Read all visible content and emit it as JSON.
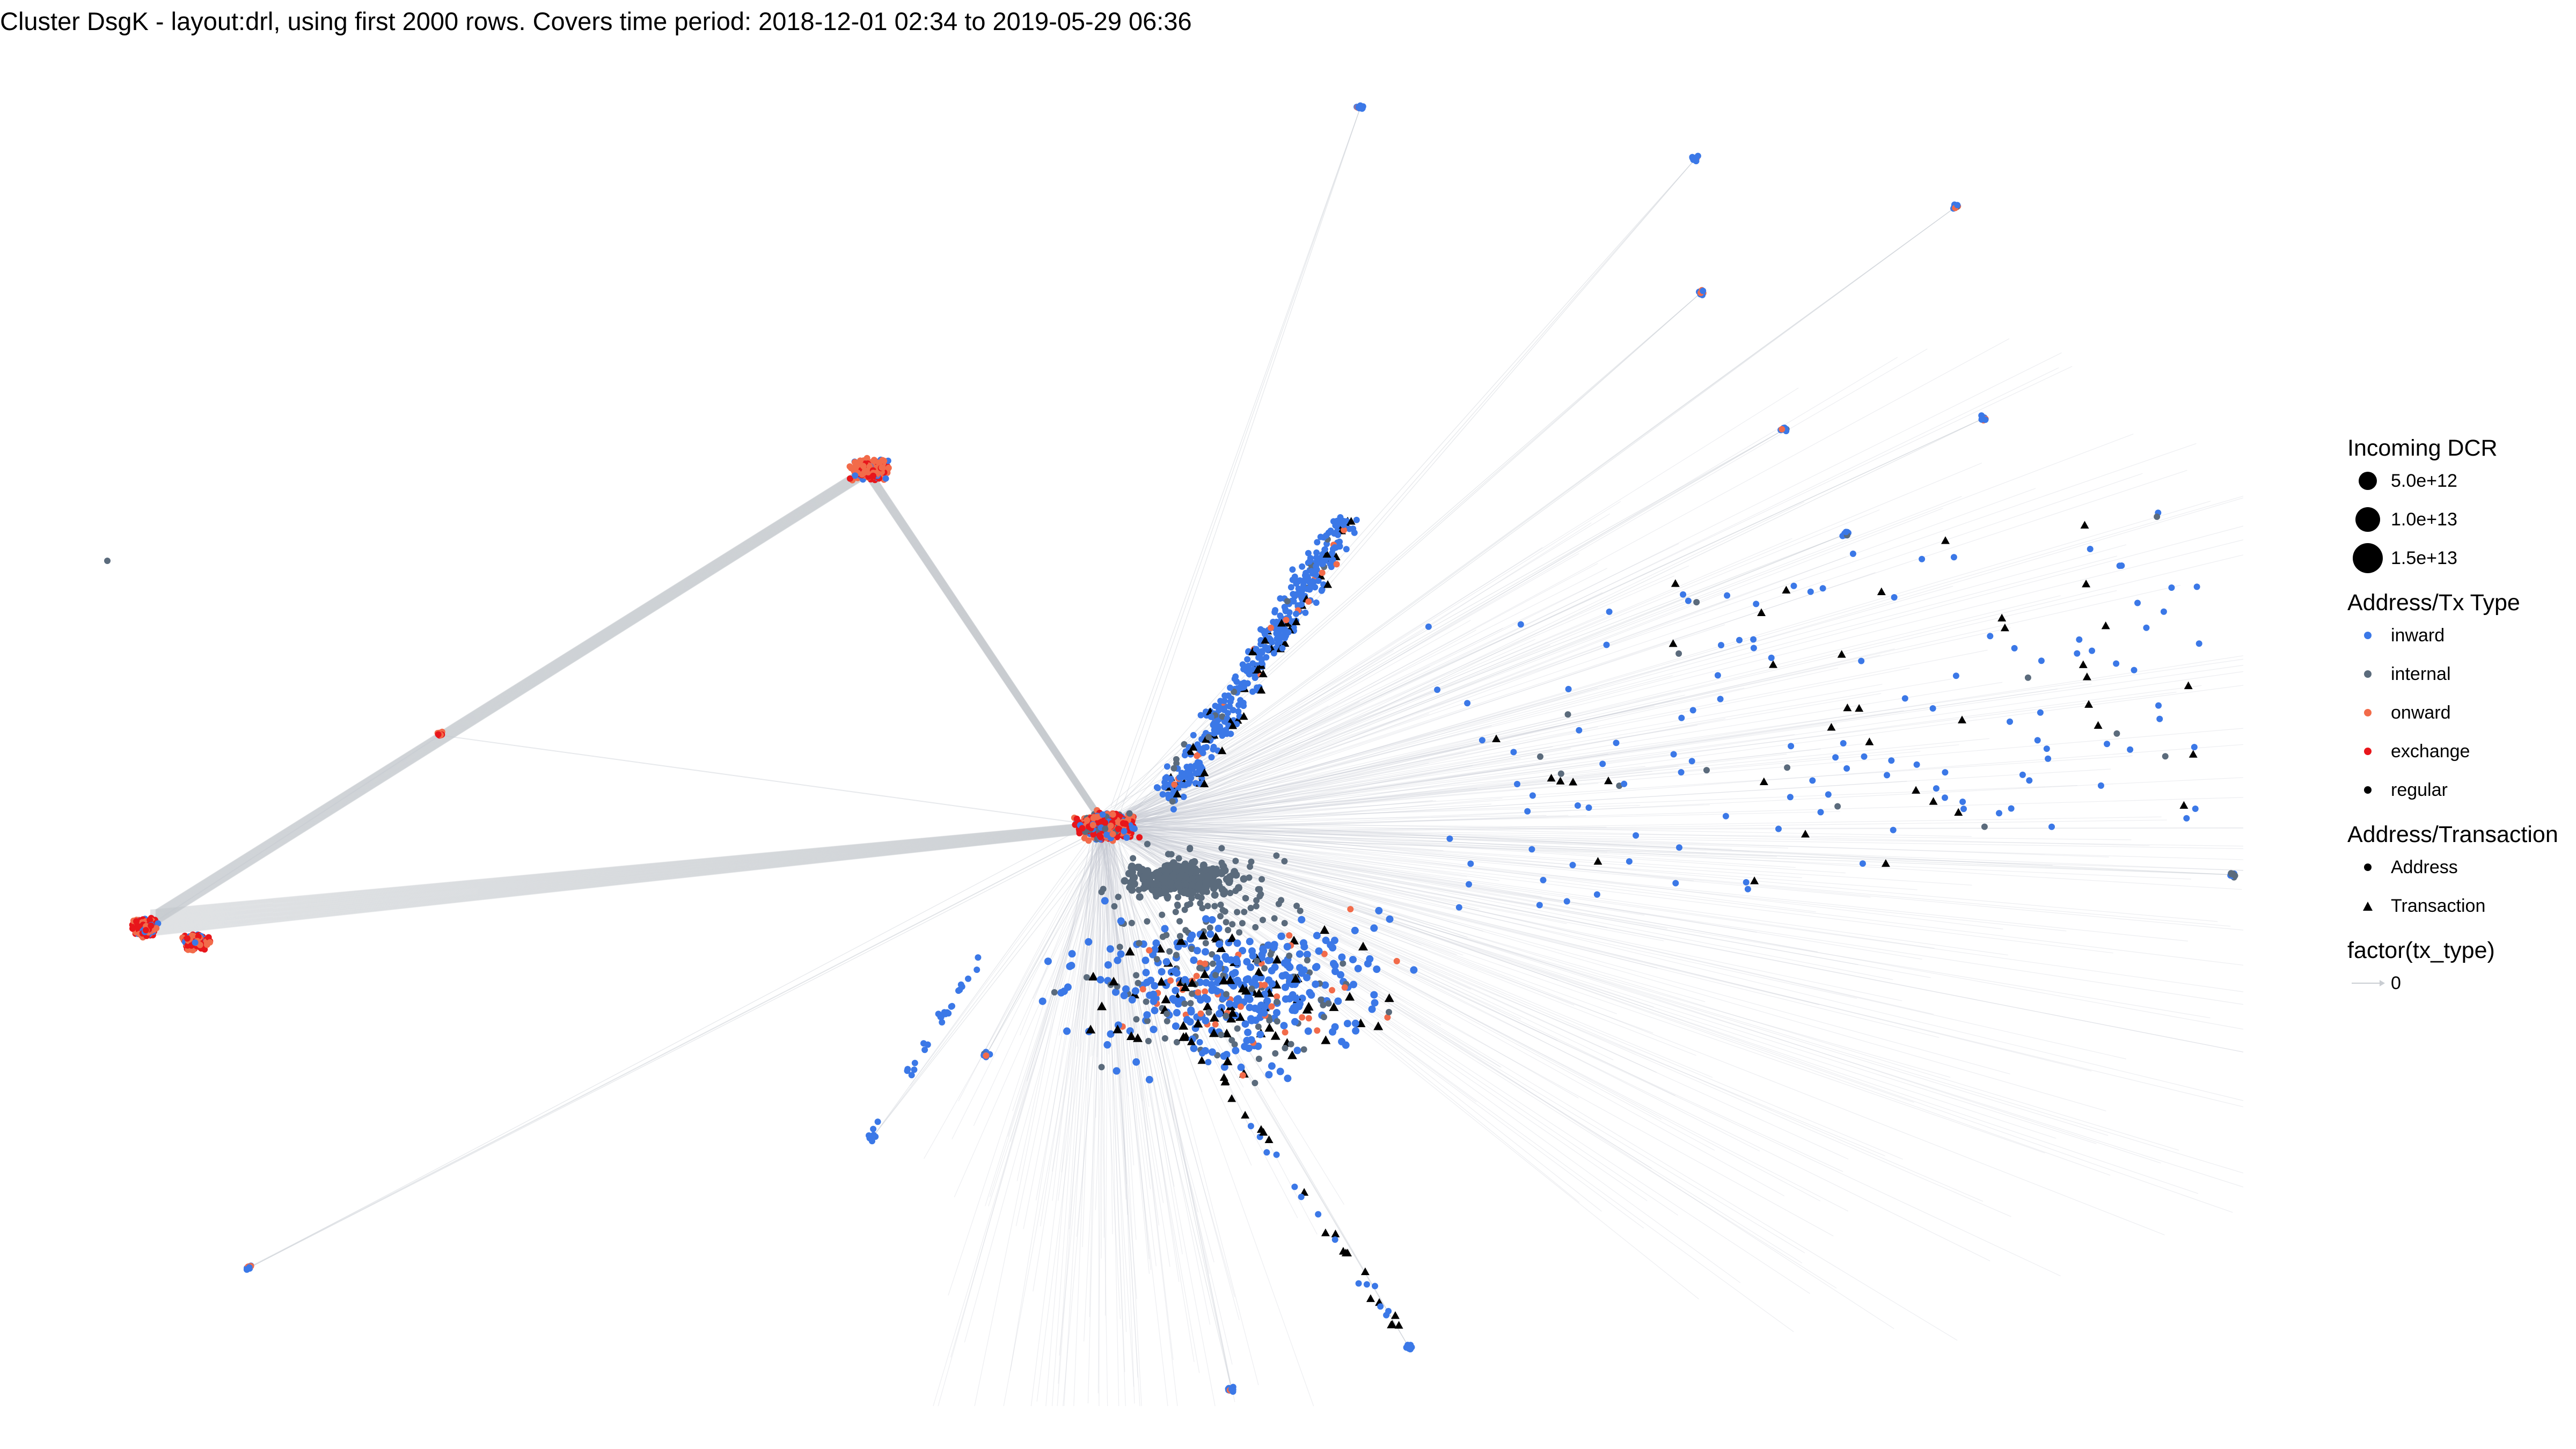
{
  "title": "Cluster DsgK - layout:drl, using first 2000 rows. Covers time period: 2018-12-01 02:34 to 2019-05-29 06:36",
  "colors": {
    "inward": "#3b78e7",
    "internal": "#5b6b7c",
    "onward": "#f26b4a",
    "exchange": "#e8161b",
    "regular": "#000000",
    "edge": "#c3c8cf"
  },
  "legend": {
    "size": {
      "title": "Incoming DCR",
      "items": [
        "5.0e+12",
        "1.0e+13",
        "1.5e+13"
      ]
    },
    "type": {
      "title": "Address/Tx Type",
      "items": [
        {
          "label": "inward",
          "color": "#3b78e7"
        },
        {
          "label": "internal",
          "color": "#5b6b7c"
        },
        {
          "label": "onward",
          "color": "#f26b4a"
        },
        {
          "label": "exchange",
          "color": "#e8161b"
        },
        {
          "label": "regular",
          "color": "#000000"
        }
      ]
    },
    "shape": {
      "title": "Address/Transaction",
      "items": [
        {
          "label": "Address",
          "shape": "circle"
        },
        {
          "label": "Transaction",
          "shape": "triangle"
        }
      ]
    },
    "edge": {
      "title": "factor(tx_type)",
      "items": [
        "0"
      ]
    }
  }
}
